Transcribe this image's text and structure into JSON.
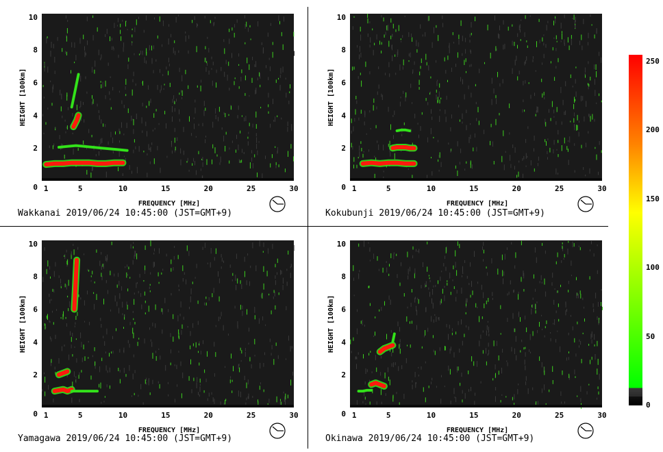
{
  "chart_data": [
    {
      "type": "heatmap",
      "station": "Wakkanai",
      "caption": "Wakkanai 2019/06/24 10:45:00 (JST=GMT+9)",
      "xlabel": "FREQUENCY [MHz]",
      "ylabel": "HEIGHT [100km]",
      "xticks": [
        1,
        5,
        10,
        15,
        20,
        25,
        30
      ],
      "yticks": [
        0,
        2,
        4,
        6,
        8,
        10
      ],
      "xlim": [
        0.5,
        30
      ],
      "ylim": [
        0,
        10.2
      ],
      "traces": [
        {
          "x": [
            1,
            2,
            3,
            4,
            5,
            6,
            7,
            8,
            9,
            10
          ],
          "y": [
            1.0,
            1.05,
            1.05,
            1.1,
            1.1,
            1.1,
            1.05,
            1.05,
            1.1,
            1.1
          ],
          "level": "high"
        },
        {
          "x": [
            2.5,
            3.5,
            4.5,
            5.5,
            6.5,
            7.5,
            8.5,
            9.5,
            10.5
          ],
          "y": [
            2.05,
            2.1,
            2.15,
            2.1,
            2.05,
            2.0,
            1.95,
            1.9,
            1.85
          ],
          "level": "mid"
        },
        {
          "x": [
            4.2,
            4.4,
            4.6,
            4.8
          ],
          "y": [
            3.3,
            3.5,
            3.7,
            4.0
          ],
          "level": "high"
        },
        {
          "x": [
            4.0,
            4.2,
            4.4,
            4.6,
            4.8
          ],
          "y": [
            4.5,
            5.0,
            5.5,
            6.0,
            6.5
          ],
          "level": "mid"
        }
      ]
    },
    {
      "type": "heatmap",
      "station": "Kokubunji",
      "caption": "Kokubunji 2019/06/24 10:45:00 (JST=GMT+9)",
      "xlabel": "FREQUENCY [MHz]",
      "ylabel": "HEIGHT [100km]",
      "xticks": [
        1,
        5,
        10,
        15,
        20,
        25,
        30
      ],
      "yticks": [
        0,
        2,
        4,
        6,
        8,
        10
      ],
      "xlim": [
        0.5,
        30
      ],
      "ylim": [
        0,
        10.2
      ],
      "traces": [
        {
          "x": [
            2,
            3,
            4,
            5,
            6,
            7,
            8
          ],
          "y": [
            1.05,
            1.1,
            1.05,
            1.1,
            1.1,
            1.05,
            1.05
          ],
          "level": "high"
        },
        {
          "x": [
            5.5,
            6.0,
            6.5,
            7.0,
            7.5,
            8.0
          ],
          "y": [
            2.0,
            2.05,
            2.05,
            2.05,
            2.0,
            2.0
          ],
          "level": "high"
        },
        {
          "x": [
            6.0,
            6.5,
            7.0,
            7.5
          ],
          "y": [
            3.05,
            3.1,
            3.1,
            3.05
          ],
          "level": "mid"
        }
      ]
    },
    {
      "type": "heatmap",
      "station": "Yamagawa",
      "caption": "Yamagawa 2019/06/24 10:45:00 (JST=GMT+9)",
      "xlabel": "FREQUENCY [MHz]",
      "ylabel": "HEIGHT [100km]",
      "xticks": [
        1,
        5,
        10,
        15,
        20,
        25,
        30
      ],
      "yticks": [
        0,
        2,
        4,
        6,
        8,
        10
      ],
      "xlim": [
        0.5,
        30
      ],
      "ylim": [
        0,
        10.2
      ],
      "traces": [
        {
          "x": [
            2.0,
            2.5,
            3.0,
            3.5,
            4.0
          ],
          "y": [
            1.0,
            1.05,
            1.1,
            1.0,
            1.1
          ],
          "level": "high"
        },
        {
          "x": [
            4.0,
            5.0,
            6.0,
            7.0
          ],
          "y": [
            1.0,
            1.0,
            1.0,
            1.0
          ],
          "level": "mid"
        },
        {
          "x": [
            2.5,
            3.0,
            3.5
          ],
          "y": [
            2.0,
            2.1,
            2.2
          ],
          "level": "high"
        },
        {
          "x": [
            4.3,
            4.4,
            4.5,
            4.6
          ],
          "y": [
            6.0,
            7.0,
            8.0,
            9.0
          ],
          "level": "high"
        }
      ]
    },
    {
      "type": "heatmap",
      "station": "Okinawa",
      "caption": "Okinawa 2019/06/24 10:45:00 (JST=GMT+9)",
      "xlabel": "FREQUENCY [MHz]",
      "ylabel": "HEIGHT [100km]",
      "xticks": [
        1,
        5,
        10,
        15,
        20,
        25,
        30
      ],
      "yticks": [
        0,
        2,
        4,
        6,
        8,
        10
      ],
      "xlim": [
        0.5,
        30
      ],
      "ylim": [
        0,
        10.2
      ],
      "traces": [
        {
          "x": [
            1.5,
            2.0,
            2.5,
            3.0
          ],
          "y": [
            1.0,
            1.0,
            1.05,
            1.05
          ],
          "level": "mid"
        },
        {
          "x": [
            3.0,
            3.5,
            4.0,
            4.5
          ],
          "y": [
            1.4,
            1.5,
            1.4,
            1.3
          ],
          "level": "high"
        },
        {
          "x": [
            4.0,
            4.5,
            5.0,
            5.5
          ],
          "y": [
            3.4,
            3.6,
            3.7,
            3.8
          ],
          "level": "high"
        },
        {
          "x": [
            5.5,
            5.7
          ],
          "y": [
            4.0,
            4.5
          ],
          "level": "mid"
        }
      ]
    }
  ],
  "colorbar": {
    "ticks": [
      250,
      200,
      150,
      100,
      50,
      0
    ],
    "range": [
      0,
      255
    ],
    "colors": [
      "#ff0000",
      "#ff8000",
      "#ffff00",
      "#80ff00",
      "#00ff00"
    ]
  },
  "colors": {
    "background": "#1a1a1a",
    "noise": "#3a3a3a",
    "noise_green": "#3cd21e",
    "mid": "#33e31a",
    "high": "#ff1a0d"
  }
}
